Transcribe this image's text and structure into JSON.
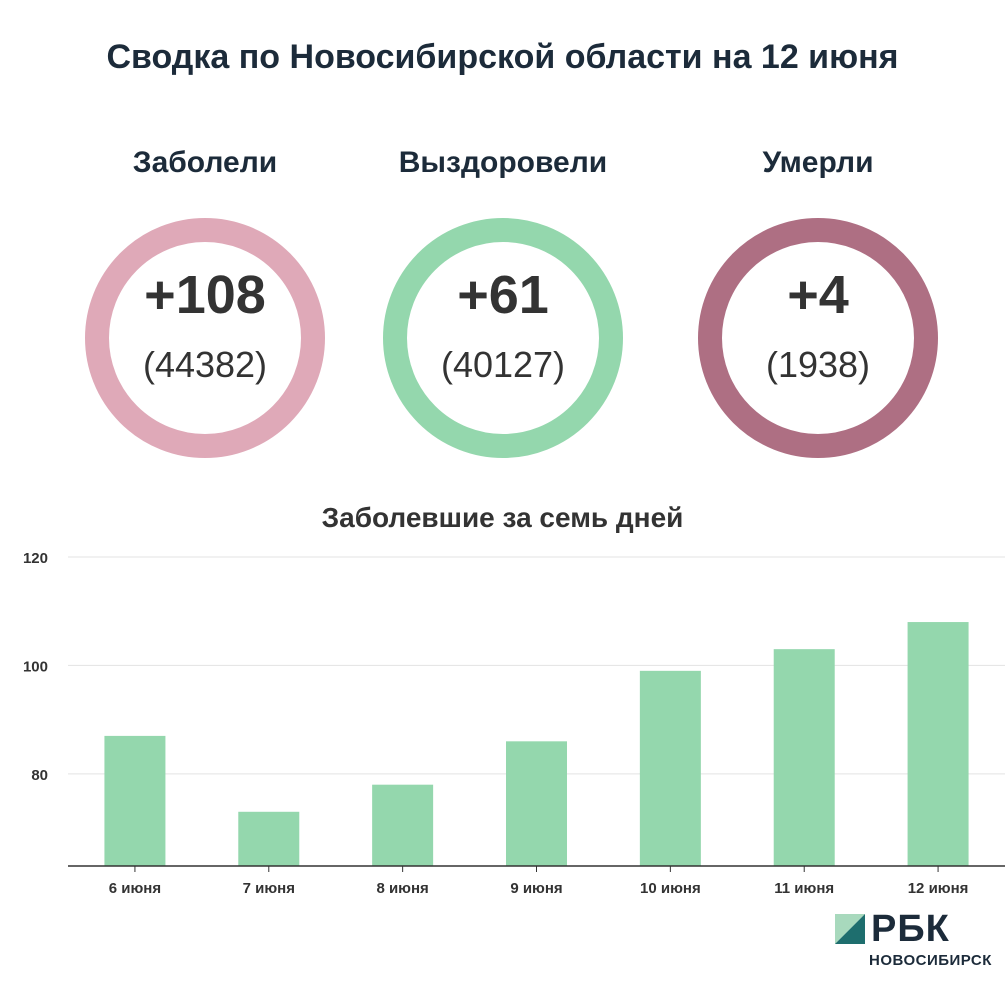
{
  "title": "Сводка по Новосибирской области на 12 июня",
  "stats": [
    {
      "label": "Заболели",
      "delta": "+108",
      "total": "(44382)",
      "color": "#dfa9b8"
    },
    {
      "label": "Выздоровели",
      "delta": "+61",
      "total": "(40127)",
      "color": "#94d7ad"
    },
    {
      "label": "Умерли",
      "delta": "+4",
      "total": "(1938)",
      "color": "#ae6f83"
    }
  ],
  "chart_data": {
    "type": "bar",
    "title": "Заболевшие за семь дней",
    "categories": [
      "6 июня",
      "7 июня",
      "8 июня",
      "9 июня",
      "10 июня",
      "11 июня",
      "12 июня"
    ],
    "values": [
      87,
      73,
      78,
      86,
      99,
      103,
      108
    ],
    "ylim": [
      63,
      120
    ],
    "yticks": [
      80,
      100,
      120
    ],
    "grid": true,
    "bar_color": "#94d7ad"
  },
  "logo": {
    "name": "РБК",
    "sub": "НОВОСИБИРСК"
  }
}
